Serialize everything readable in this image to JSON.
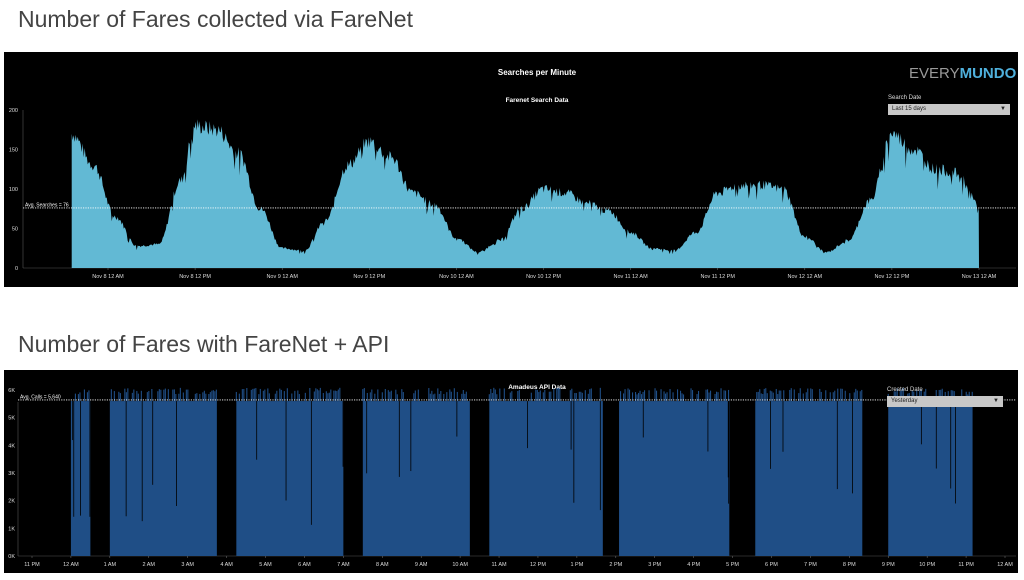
{
  "sections": {
    "top_title": "Number of Fares collected via FareNet",
    "bottom_title": "Number of Fares with FareNet + API"
  },
  "top_panel": {
    "header": "Searches per Minute",
    "logo_part1": "EVERY",
    "logo_part2": "MUNDO",
    "filter_label": "Search Date",
    "filter_value": "Last 15 days"
  },
  "bottom_panel": {
    "filter_label": "Created Date",
    "filter_value": "Yesterday"
  },
  "colors": {
    "top_fill": "#62b9d4",
    "bottom_fill": "#1f4e86",
    "avg_line": "#ffffff",
    "logo_accent": "#4fb0dc"
  },
  "chart_data": [
    {
      "type": "area",
      "title": "Farenet Search Data",
      "xlabel": "",
      "ylabel": "",
      "ylim": [
        0,
        200
      ],
      "yticks": [
        0,
        50,
        100,
        150,
        200
      ],
      "x_ticks": [
        "Nov 8 12 AM",
        "Nov 8 12 PM",
        "Nov 9 12 AM",
        "Nov 9 12 PM",
        "Nov 10 12 AM",
        "Nov 10 12 PM",
        "Nov 11 12 AM",
        "Nov 11 12 PM",
        "Nov 12 12 AM",
        "Nov 12 12 PM",
        "Nov 13 12 AM"
      ],
      "x_start": "Nov 7 ~7 PM",
      "x_end": "Nov 13 12 AM",
      "series": [
        {
          "x": [
            "Nov 7 7 PM",
            "Nov 7 10 PM",
            "Nov 8 1 AM",
            "Nov 8 4 AM",
            "Nov 8 7 AM",
            "Nov 8 10 AM",
            "Nov 8 12 PM",
            "Nov 8 3 PM",
            "Nov 8 6 PM",
            "Nov 8 9 PM",
            "Nov 9 12 AM",
            "Nov 9 3 AM",
            "Nov 9 6 AM",
            "Nov 9 9 AM",
            "Nov 9 12 PM",
            "Nov 9 3 PM",
            "Nov 9 6 PM",
            "Nov 9 9 PM",
            "Nov 10 12 AM",
            "Nov 10 3 AM",
            "Nov 10 6 AM",
            "Nov 10 9 AM",
            "Nov 10 12 PM",
            "Nov 10 3 PM",
            "Nov 10 6 PM",
            "Nov 10 9 PM",
            "Nov 11 12 AM",
            "Nov 11 3 AM",
            "Nov 11 6 AM",
            "Nov 11 9 AM",
            "Nov 11 12 PM",
            "Nov 11 3 PM",
            "Nov 11 6 PM",
            "Nov 11 9 PM",
            "Nov 12 12 AM",
            "Nov 12 3 AM",
            "Nov 12 6 AM",
            "Nov 12 9 AM",
            "Nov 12 12 PM",
            "Nov 12 3 PM",
            "Nov 12 6 PM",
            "Nov 12 9 PM",
            "Nov 13 12 AM"
          ],
          "values": [
            170,
            130,
            65,
            28,
            30,
            110,
            180,
            175,
            145,
            75,
            25,
            22,
            60,
            130,
            160,
            140,
            95,
            80,
            38,
            20,
            35,
            75,
            100,
            95,
            82,
            72,
            45,
            25,
            22,
            45,
            95,
            105,
            105,
            100,
            40,
            20,
            35,
            85,
            170,
            150,
            125,
            120,
            80
          ]
        }
      ],
      "reference_line": {
        "label": "Avg. Searches = 76",
        "value": 76
      }
    },
    {
      "type": "bar",
      "title": "Amadeus API Data",
      "xlabel": "",
      "ylabel": "",
      "ylim": [
        0,
        6000
      ],
      "yticks": [
        "0K",
        "1K",
        "2K",
        "3K",
        "4K",
        "5K",
        "6K"
      ],
      "x_ticks": [
        "11 PM",
        "12 AM",
        "1 AM",
        "2 AM",
        "3 AM",
        "4 AM",
        "5 AM",
        "6 AM",
        "7 AM",
        "8 AM",
        "9 AM",
        "10 AM",
        "11 AM",
        "12 PM",
        "1 PM",
        "2 PM",
        "3 PM",
        "4 PM",
        "5 PM",
        "6 PM",
        "7 PM",
        "8 PM",
        "9 PM",
        "10 PM",
        "11 PM",
        "12 AM"
      ],
      "active_blocks": [
        {
          "start": "12 AM",
          "end": "12:30 AM"
        },
        {
          "start": "1 AM",
          "end": "3:45 AM"
        },
        {
          "start": "4:15 AM",
          "end": "7 AM"
        },
        {
          "start": "7:30 AM",
          "end": "10:15 AM"
        },
        {
          "start": "10:45 AM",
          "end": "1:40 PM"
        },
        {
          "start": "2:05 PM",
          "end": "4:55 PM"
        },
        {
          "start": "5:35 PM",
          "end": "8:20 PM"
        },
        {
          "start": "9 PM",
          "end": "11:10 PM"
        }
      ],
      "typical_value": 5600,
      "peak_value": 6000,
      "reference_line": {
        "label": "Avg. Calls = 5,640",
        "value": 5640
      }
    }
  ]
}
